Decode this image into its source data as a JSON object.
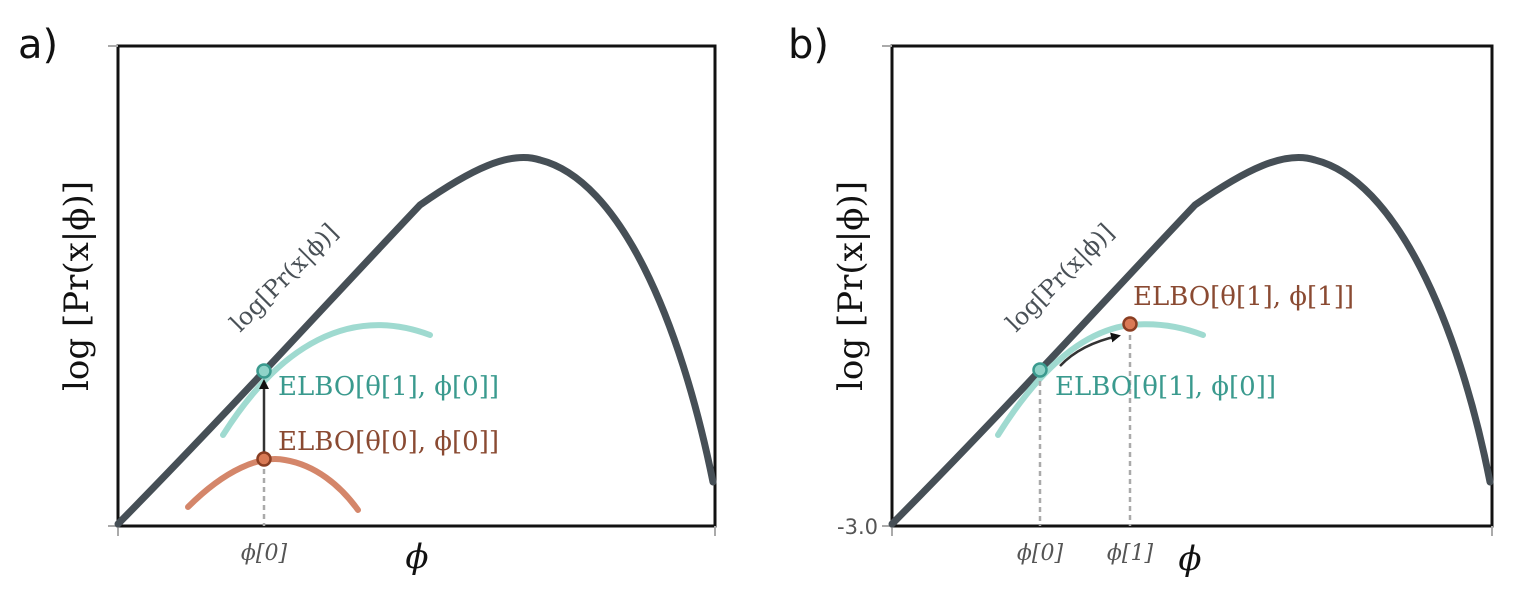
{
  "panels": [
    {
      "letter": "a)",
      "ylabel": "log [Pr(x|ϕ)]",
      "xlabel": "ϕ",
      "curve_label": "log[Pr(x|ϕ)]",
      "xticks": [
        "ϕ[0]"
      ],
      "yticks": [],
      "elbo_labels": [
        {
          "text": "ELBO[θ[1], ϕ[0]]",
          "color": "#3a9a8e"
        },
        {
          "text": "ELBO[θ[0], ϕ[0]]",
          "color": "#8a4a32"
        }
      ]
    },
    {
      "letter": "b)",
      "ylabel": "log [Pr(x|ϕ)]",
      "xlabel": "ϕ",
      "curve_label": "log[Pr(x|ϕ)]",
      "xticks": [
        "ϕ[0]",
        "ϕ[1]"
      ],
      "yticks": [
        "-3.0"
      ],
      "elbo_labels": [
        {
          "text": "ELBO[θ[1], ϕ[1]]",
          "color": "#8a4a32"
        },
        {
          "text": "ELBO[θ[1], ϕ[0]]",
          "color": "#3a9a8e"
        }
      ]
    }
  ],
  "colors": {
    "main_curve": "#464f56",
    "elbo_teal": "#9fdad0",
    "elbo_brown": "#d4866a",
    "point_teal_fill": "#8fd3c8",
    "point_teal_stroke": "#3a9a8e",
    "point_brown_fill": "#d97a55",
    "point_brown_stroke": "#8a3e22",
    "guide": "#aaaaaa"
  }
}
